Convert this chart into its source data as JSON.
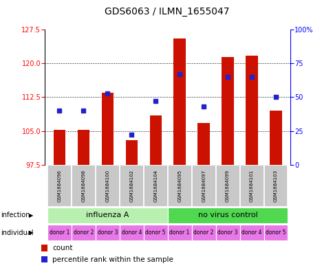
{
  "title": "GDS6063 / ILMN_1655047",
  "samples": [
    "GSM1684096",
    "GSM1684098",
    "GSM1684100",
    "GSM1684102",
    "GSM1684104",
    "GSM1684095",
    "GSM1684097",
    "GSM1684099",
    "GSM1684101",
    "GSM1684103"
  ],
  "count_values": [
    105.3,
    105.2,
    113.5,
    103.0,
    108.5,
    125.5,
    106.8,
    121.5,
    121.8,
    109.5
  ],
  "percentile_values": [
    40,
    40,
    53,
    22,
    47,
    67,
    43,
    65,
    65,
    50
  ],
  "ylim_left": [
    97.5,
    127.5
  ],
  "ylim_right": [
    0,
    100
  ],
  "yticks_left": [
    97.5,
    105,
    112.5,
    120,
    127.5
  ],
  "yticks_right": [
    0,
    25,
    50,
    75,
    100
  ],
  "infection_groups": [
    {
      "label": "influenza A",
      "start": 0,
      "end": 5,
      "color": "#b8f0b0"
    },
    {
      "label": "no virus control",
      "start": 5,
      "end": 10,
      "color": "#50d850"
    }
  ],
  "individual_labels": [
    "donor 1",
    "donor 2",
    "donor 3",
    "donor 4",
    "donor 5",
    "donor 1",
    "donor 2",
    "donor 3",
    "donor 4",
    "donor 5"
  ],
  "individual_color": "#e878e8",
  "bar_color": "#cc1100",
  "dot_color": "#2222cc",
  "bar_width": 0.5,
  "sample_bg_color": "#c8c8c8",
  "ytick_label_fontsize": 7,
  "sample_label_fontsize": 5,
  "infection_label_fontsize": 8,
  "individual_label_fontsize": 5.5,
  "legend_fontsize": 7.5,
  "title_fontsize": 10
}
